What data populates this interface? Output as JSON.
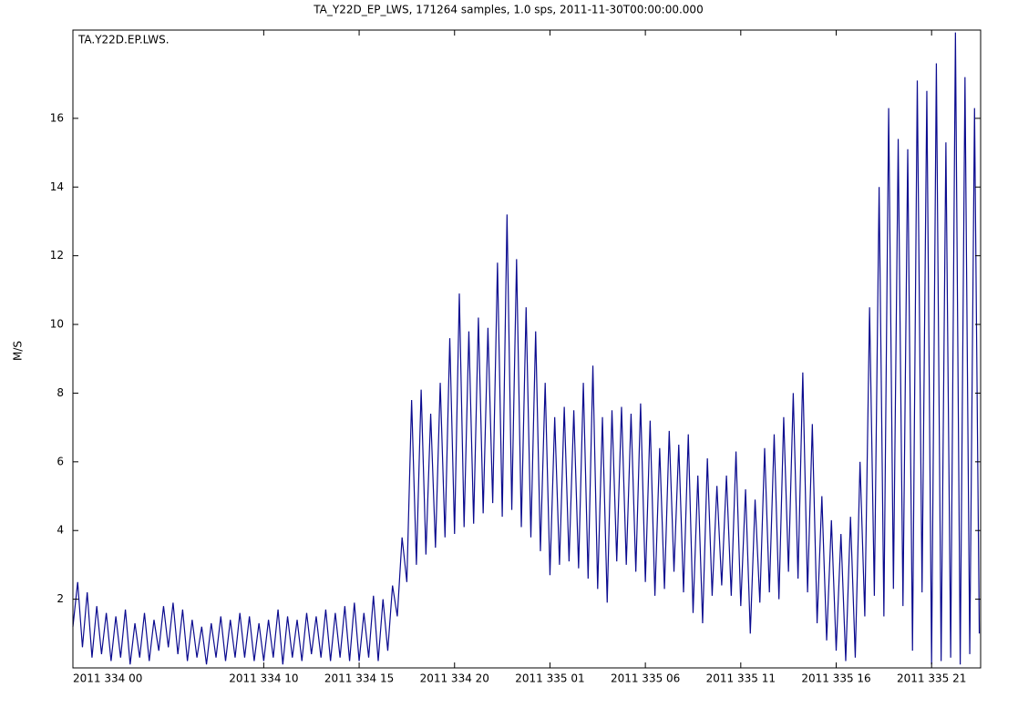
{
  "chart_data": {
    "type": "line",
    "title": "TA_Y22D_EP_LWS, 171264 samples, 1.0 sps, 2011-11-30T00:00:00.000",
    "annotation": "TA.Y22D.EP.LWS.",
    "ylabel": "M/S",
    "color": "#0b0b8f",
    "xlim": [
      0,
      47.57
    ],
    "ylim": [
      0,
      18.57
    ],
    "yticks": [
      2,
      4,
      6,
      8,
      10,
      12,
      14,
      16
    ],
    "xticks": [
      {
        "value": 0,
        "label": "2011 334 00"
      },
      {
        "value": 10,
        "label": "2011 334 10"
      },
      {
        "value": 15,
        "label": "2011 334 15"
      },
      {
        "value": 20,
        "label": "2011 334 20"
      },
      {
        "value": 25,
        "label": "2011 335 01"
      },
      {
        "value": 30,
        "label": "2011 335 06"
      },
      {
        "value": 35,
        "label": "2011 335 11"
      },
      {
        "value": 40,
        "label": "2011 335 16"
      },
      {
        "value": 45,
        "label": "2011 335 21"
      }
    ],
    "x": [
      0,
      0.25,
      0.5,
      0.75,
      1,
      1.25,
      1.5,
      1.75,
      2,
      2.25,
      2.5,
      2.75,
      3,
      3.25,
      3.5,
      3.75,
      4,
      4.25,
      4.5,
      4.75,
      5,
      5.25,
      5.5,
      5.75,
      6,
      6.25,
      6.5,
      6.75,
      7,
      7.25,
      7.5,
      7.75,
      8,
      8.25,
      8.5,
      8.75,
      9,
      9.25,
      9.5,
      9.75,
      10,
      10.25,
      10.5,
      10.75,
      11,
      11.25,
      11.5,
      11.75,
      12,
      12.25,
      12.5,
      12.75,
      13,
      13.25,
      13.5,
      13.75,
      14,
      14.25,
      14.5,
      14.75,
      15,
      15.25,
      15.5,
      15.75,
      16,
      16.25,
      16.5,
      16.75,
      17,
      17.25,
      17.5,
      17.75,
      18,
      18.25,
      18.5,
      18.75,
      19,
      19.25,
      19.5,
      19.75,
      20,
      20.25,
      20.5,
      20.75,
      21,
      21.25,
      21.5,
      21.75,
      22,
      22.25,
      22.5,
      22.75,
      23,
      23.25,
      23.5,
      23.75,
      24,
      24.25,
      24.5,
      24.75,
      25,
      25.25,
      25.5,
      25.75,
      26,
      26.25,
      26.5,
      26.75,
      27,
      27.25,
      27.5,
      27.75,
      28,
      28.25,
      28.5,
      28.75,
      29,
      29.25,
      29.5,
      29.75,
      30,
      30.25,
      30.5,
      30.75,
      31,
      31.25,
      31.5,
      31.75,
      32,
      32.25,
      32.5,
      32.75,
      33,
      33.25,
      33.5,
      33.75,
      34,
      34.25,
      34.5,
      34.75,
      35,
      35.25,
      35.5,
      35.75,
      36,
      36.25,
      36.5,
      36.75,
      37,
      37.25,
      37.5,
      37.75,
      38,
      38.25,
      38.5,
      38.75,
      39,
      39.25,
      39.5,
      39.75,
      40,
      40.25,
      40.5,
      40.75,
      41,
      41.25,
      41.5,
      41.75,
      42,
      42.25,
      42.5,
      42.75,
      43,
      43.25,
      43.5,
      43.75,
      44,
      44.25,
      44.5,
      44.75,
      45,
      45.25,
      45.5,
      45.75,
      46,
      46.25,
      46.5,
      46.75,
      47,
      47.25,
      47.5
    ],
    "values": [
      1.2,
      2.5,
      0.6,
      2.2,
      0.3,
      1.8,
      0.4,
      1.6,
      0.2,
      1.5,
      0.3,
      1.7,
      0.1,
      1.3,
      0.3,
      1.6,
      0.2,
      1.4,
      0.5,
      1.8,
      0.6,
      1.9,
      0.4,
      1.7,
      0.2,
      1.4,
      0.3,
      1.2,
      0.1,
      1.3,
      0.3,
      1.5,
      0.2,
      1.4,
      0.3,
      1.6,
      0.3,
      1.5,
      0.2,
      1.3,
      0.2,
      1.4,
      0.3,
      1.7,
      0.1,
      1.5,
      0.3,
      1.4,
      0.2,
      1.6,
      0.4,
      1.5,
      0.3,
      1.7,
      0.2,
      1.6,
      0.3,
      1.8,
      0.2,
      1.9,
      0.2,
      1.6,
      0.3,
      2.1,
      0.2,
      2.0,
      0.5,
      2.4,
      1.5,
      3.8,
      2.5,
      7.8,
      3.0,
      8.1,
      3.3,
      7.4,
      3.5,
      8.3,
      3.8,
      9.6,
      3.9,
      10.9,
      4.1,
      9.8,
      4.2,
      10.2,
      4.5,
      9.9,
      4.8,
      11.8,
      4.4,
      13.2,
      4.6,
      11.9,
      4.1,
      10.5,
      3.8,
      9.8,
      3.4,
      8.3,
      2.7,
      7.3,
      3.0,
      7.6,
      3.1,
      7.5,
      2.9,
      8.3,
      2.6,
      8.8,
      2.3,
      7.3,
      1.9,
      7.5,
      3.1,
      7.6,
      3.0,
      7.4,
      2.8,
      7.7,
      2.5,
      7.2,
      2.1,
      6.4,
      2.3,
      6.9,
      2.8,
      6.5,
      2.2,
      6.8,
      1.6,
      5.6,
      1.3,
      6.1,
      2.1,
      5.3,
      2.4,
      5.6,
      2.1,
      6.3,
      1.8,
      5.2,
      1.0,
      4.9,
      1.9,
      6.4,
      2.2,
      6.8,
      2.0,
      7.3,
      2.8,
      8.0,
      2.6,
      8.6,
      2.2,
      7.1,
      1.3,
      5.0,
      0.8,
      4.3,
      0.5,
      3.9,
      0.2,
      4.4,
      0.3,
      6.0,
      1.5,
      10.5,
      2.1,
      14.0,
      1.5,
      16.3,
      2.3,
      15.4,
      1.8,
      15.1,
      0.5,
      17.1,
      2.2,
      16.8,
      0.1,
      17.6,
      0.2,
      15.3,
      0.3,
      18.5,
      0.1,
      17.2,
      0.4,
      16.3,
      1.0
    ]
  }
}
